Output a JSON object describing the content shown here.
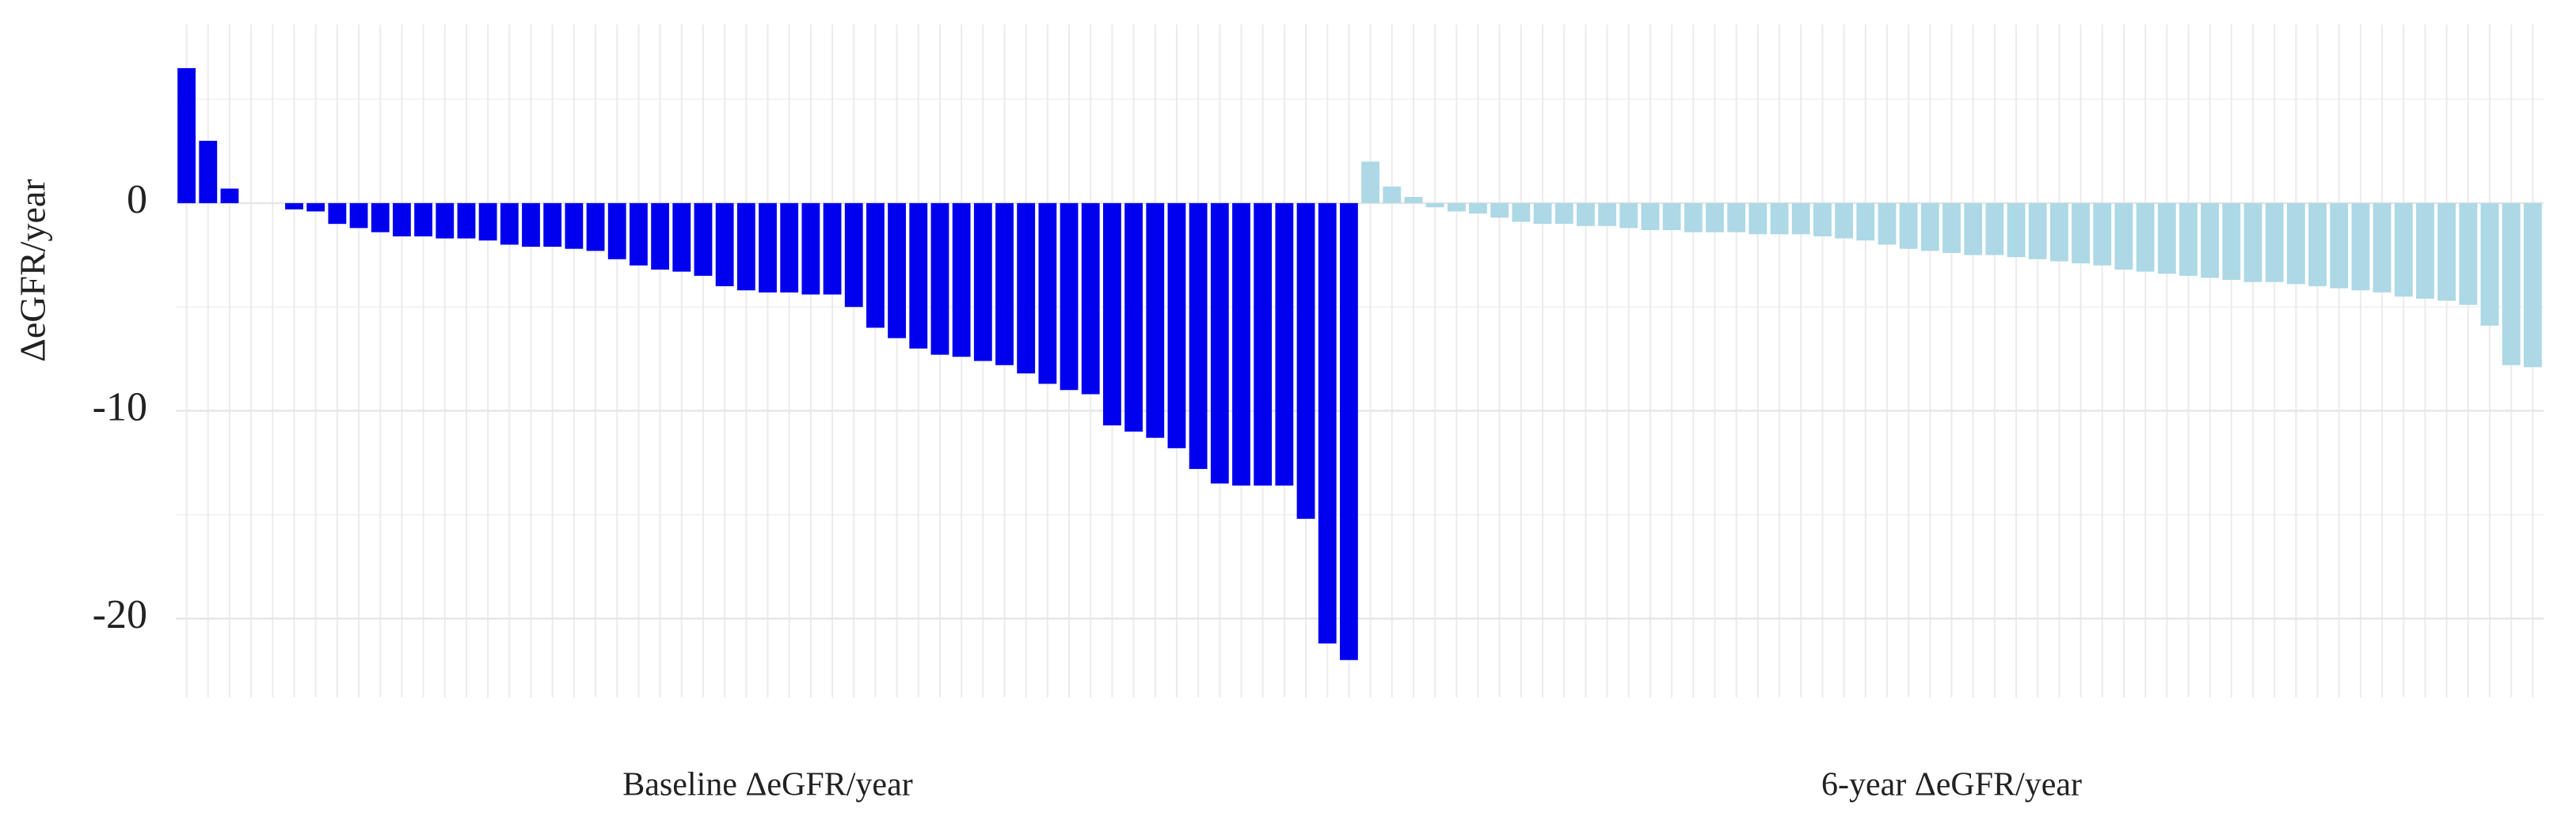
{
  "chart_data": {
    "type": "bar",
    "y_label": "ΔeGFR/year",
    "ylim": [
      -23.8,
      8.6
    ],
    "yticks": [
      0,
      -10,
      -20
    ],
    "minor_yticks": [
      5,
      -5,
      -15
    ],
    "grid": true,
    "series": [
      {
        "name": "Baseline  ΔeGFR/year",
        "color": "#0000ee",
        "values": [
          6.5,
          3,
          0.7,
          0,
          0,
          -0.3,
          -0.4,
          -1,
          -1.2,
          -1.4,
          -1.6,
          -1.6,
          -1.7,
          -1.7,
          -1.8,
          -2,
          -2.1,
          -2.1,
          -2.2,
          -2.3,
          -2.7,
          -3,
          -3.2,
          -3.3,
          -3.5,
          -4,
          -4.2,
          -4.3,
          -4.3,
          -4.4,
          -4.4,
          -5,
          -6,
          -6.5,
          -7,
          -7.3,
          -7.4,
          -7.6,
          -7.8,
          -8.2,
          -8.7,
          -9,
          -9.2,
          -10.7,
          -11,
          -11.3,
          -11.8,
          -12.8,
          -13.5,
          -13.6,
          -13.6,
          -13.6,
          -15.2,
          -21.2,
          -22
        ]
      },
      {
        "name": "6-year  ΔeGFR/year",
        "color": "#add8e6",
        "values": [
          2,
          0.8,
          0.3,
          -0.2,
          -0.4,
          -0.5,
          -0.7,
          -0.9,
          -1,
          -1,
          -1.1,
          -1.1,
          -1.2,
          -1.3,
          -1.3,
          -1.4,
          -1.4,
          -1.4,
          -1.5,
          -1.5,
          -1.5,
          -1.6,
          -1.7,
          -1.8,
          -2,
          -2.2,
          -2.3,
          -2.4,
          -2.5,
          -2.5,
          -2.6,
          -2.7,
          -2.8,
          -2.9,
          -3,
          -3.2,
          -3.3,
          -3.4,
          -3.5,
          -3.6,
          -3.7,
          -3.8,
          -3.8,
          -3.9,
          -4,
          -4.1,
          -4.2,
          -4.3,
          -4.5,
          -4.6,
          -4.7,
          -4.9,
          -5.9,
          -7.8,
          -7.9
        ]
      }
    ]
  }
}
